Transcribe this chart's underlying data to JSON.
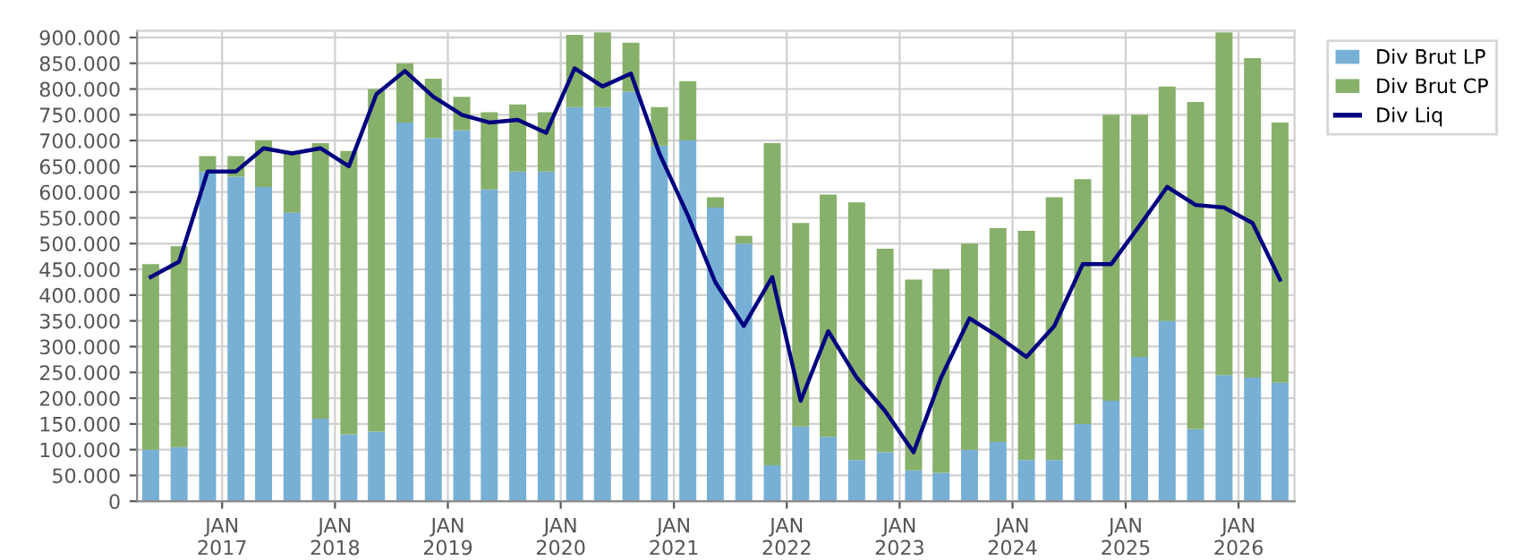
{
  "chart_data": {
    "type": "bar",
    "stacked": true,
    "x": [
      "2016-05-15",
      "2016-08-15",
      "2016-11-15",
      "2017-02-15",
      "2017-05-15",
      "2017-08-15",
      "2017-11-15",
      "2018-02-15",
      "2018-05-15",
      "2018-08-15",
      "2018-11-15",
      "2019-02-15",
      "2019-05-15",
      "2019-08-15",
      "2019-11-15",
      "2020-02-15",
      "2020-05-15",
      "2020-08-15",
      "2020-11-15",
      "2021-02-15",
      "2021-05-15",
      "2021-08-15",
      "2021-11-15",
      "2022-02-15",
      "2022-05-15",
      "2022-08-15",
      "2022-11-15",
      "2023-02-15",
      "2023-05-15",
      "2023-08-15",
      "2023-11-15",
      "2024-02-15",
      "2024-05-15",
      "2024-08-15",
      "2024-11-15",
      "2025-02-15",
      "2025-05-15",
      "2025-08-15",
      "2025-11-15",
      "2026-02-15",
      "2026-05-15"
    ],
    "series": [
      {
        "name": "Div Brut LP",
        "color": "#77b0d4",
        "values": [
          100000,
          105000,
          640000,
          630000,
          610000,
          560000,
          160000,
          130000,
          135000,
          735000,
          705000,
          720000,
          605000,
          640000,
          640000,
          765000,
          765000,
          795000,
          690000,
          700000,
          570000,
          500000,
          70000,
          145000,
          125000,
          80000,
          95000,
          60000,
          55000,
          100000,
          115000,
          80000,
          80000,
          150000,
          195000,
          280000,
          350000,
          140000,
          245000,
          240000,
          230000
        ]
      },
      {
        "name": "Div Brut CP",
        "color": "#87b06a",
        "values": [
          360000,
          390000,
          30000,
          40000,
          90000,
          120000,
          535000,
          550000,
          665000,
          115000,
          115000,
          65000,
          150000,
          130000,
          115000,
          140000,
          145000,
          95000,
          75000,
          115000,
          20000,
          15000,
          625000,
          395000,
          470000,
          500000,
          395000,
          370000,
          395000,
          400000,
          415000,
          445000,
          510000,
          475000,
          555000,
          470000,
          455000,
          635000,
          665000,
          620000,
          505000
        ]
      },
      {
        "name": "Div Liq",
        "type": "line",
        "color": "#000080",
        "line_style": "solid",
        "values": [
          435000,
          465000,
          640000,
          640000,
          685000,
          675000,
          685000,
          650000,
          790000,
          835000,
          785000,
          750000,
          735000,
          740000,
          715000,
          840000,
          805000,
          830000,
          675000,
          555000,
          425000,
          340000,
          435000,
          195000,
          330000,
          240000,
          175000,
          95000,
          240000,
          355000,
          320000,
          280000,
          340000,
          460000,
          460000,
          535000,
          610000,
          575000,
          570000,
          540000,
          430000
        ]
      }
    ],
    "xlim": [
      "2016-04-01",
      "2026-07-01"
    ],
    "xticks": [
      {
        "value": "2017-01-01",
        "label": "JAN\n2017"
      },
      {
        "value": "2018-01-01",
        "label": "JAN\n2018"
      },
      {
        "value": "2019-01-01",
        "label": "JAN\n2019"
      },
      {
        "value": "2020-01-01",
        "label": "JAN\n2020"
      },
      {
        "value": "2021-01-01",
        "label": "JAN\n2021"
      },
      {
        "value": "2022-01-01",
        "label": "JAN\n2022"
      },
      {
        "value": "2023-01-01",
        "label": "JAN\n2023"
      },
      {
        "value": "2024-01-01",
        "label": "JAN\n2024"
      },
      {
        "value": "2025-01-01",
        "label": "JAN\n2025"
      },
      {
        "value": "2026-01-01",
        "label": "JAN\n2026"
      }
    ],
    "ylim": [
      0,
      913000
    ],
    "yticks": [
      {
        "value": 0,
        "label": "0"
      },
      {
        "value": 50000,
        "label": "50.000"
      },
      {
        "value": 100000,
        "label": "100.000"
      },
      {
        "value": 150000,
        "label": "150.000"
      },
      {
        "value": 200000,
        "label": "200.000"
      },
      {
        "value": 250000,
        "label": "250.000"
      },
      {
        "value": 300000,
        "label": "300.000"
      },
      {
        "value": 350000,
        "label": "350.000"
      },
      {
        "value": 400000,
        "label": "400.000"
      },
      {
        "value": 450000,
        "label": "450.000"
      },
      {
        "value": 500000,
        "label": "500.000"
      },
      {
        "value": 550000,
        "label": "550.000"
      },
      {
        "value": 600000,
        "label": "600.000"
      },
      {
        "value": 650000,
        "label": "650.000"
      },
      {
        "value": 700000,
        "label": "700.000"
      },
      {
        "value": 750000,
        "label": "750.000"
      },
      {
        "value": 800000,
        "label": "800.000"
      },
      {
        "value": 850000,
        "label": "850.000"
      },
      {
        "value": 900000,
        "label": "900.000"
      }
    ],
    "grid": true,
    "legend": "top right"
  }
}
